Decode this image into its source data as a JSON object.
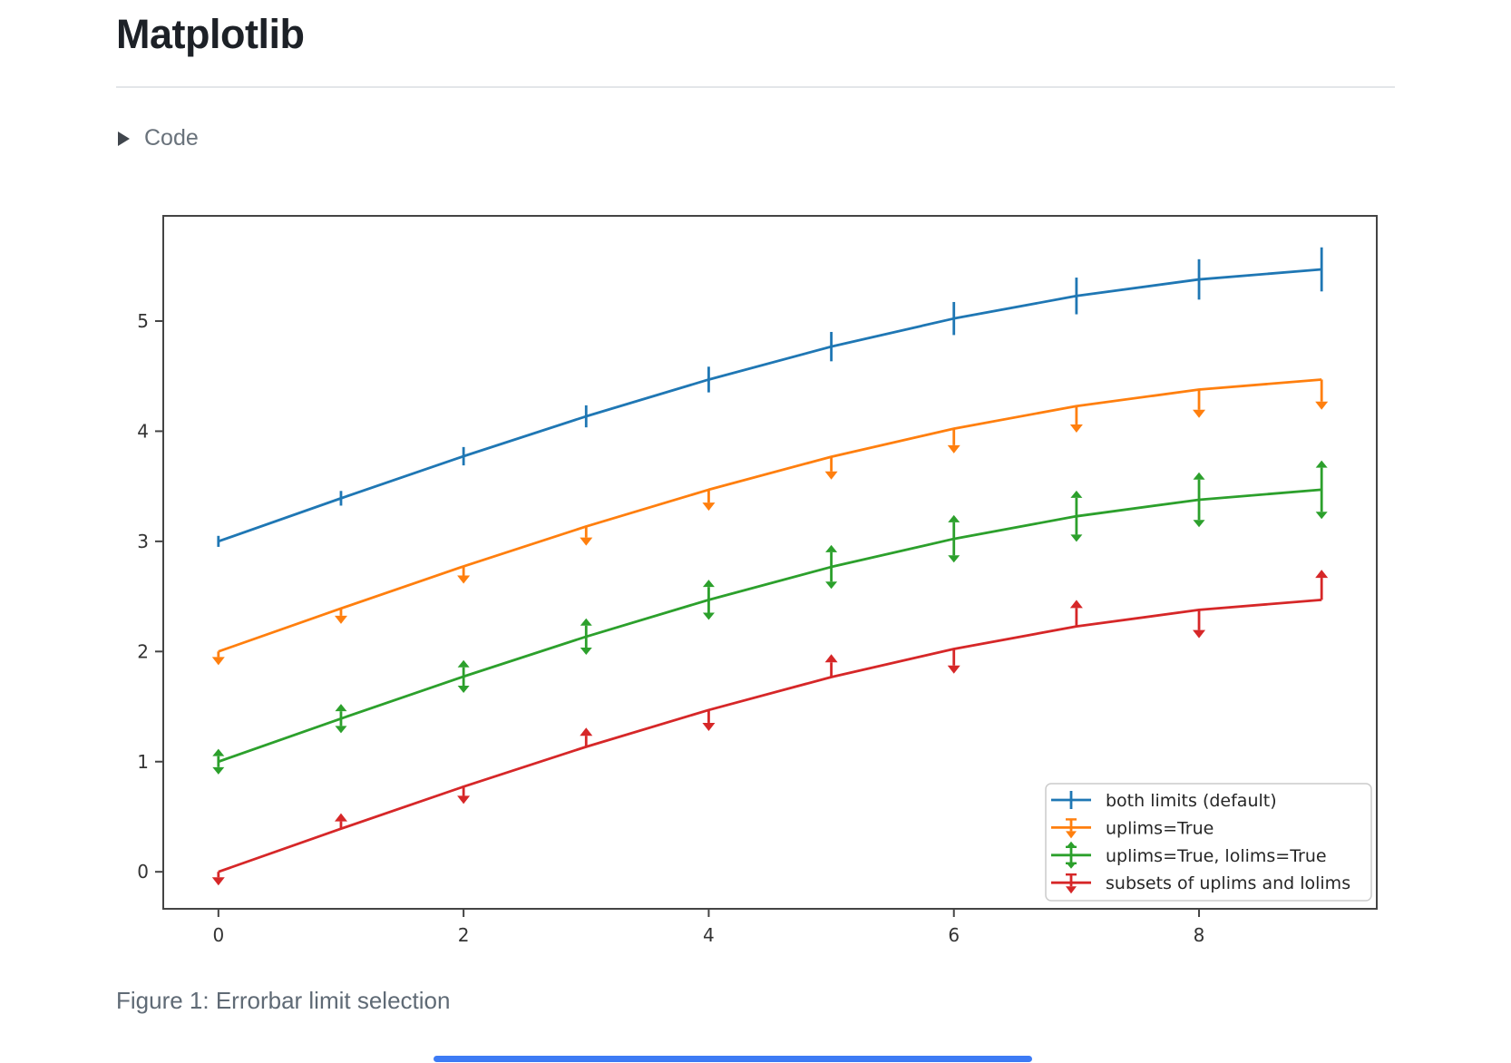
{
  "page": {
    "title": "Matplotlib",
    "code_toggle": {
      "label": "Code",
      "icon": "triangle-right-icon"
    },
    "figure_caption": "Figure 1: Errorbar limit selection"
  },
  "colors": {
    "title_text": "#1d2127",
    "muted_text": "#69727b",
    "caption_text": "#5f6a75",
    "divider": "#e3e6e9",
    "axis": "#444444",
    "tick_text": "#333333",
    "legend_border": "#cccccc",
    "legend_text": "#262626",
    "bottom_bar": "#3d7bf5"
  },
  "chart_data": {
    "type": "line",
    "subtype": "errorbar",
    "title": "",
    "xlabel": "",
    "ylabel": "",
    "x": [
      0,
      1,
      2,
      3,
      4,
      5,
      6,
      7,
      8,
      9
    ],
    "xlim": [
      -0.45,
      9.45
    ],
    "ylim": [
      -0.336,
      5.955
    ],
    "x_ticks": [
      0,
      2,
      4,
      6,
      8
    ],
    "y_ticks": [
      0,
      1,
      2,
      3,
      4,
      5
    ],
    "grid": false,
    "legend_position": "lower right",
    "yerr": [
      0.05,
      0.0667,
      0.0833,
      0.1,
      0.1167,
      0.1333,
      0.15,
      0.1667,
      0.1833,
      0.2
    ],
    "series": [
      {
        "name": "both limits (default)",
        "color": "#1f77b4",
        "limits": "none",
        "values": [
          3.0,
          3.391,
          3.773,
          4.135,
          4.469,
          4.768,
          5.023,
          5.228,
          5.378,
          5.469
        ]
      },
      {
        "name": "uplims=True",
        "color": "#ff7f0e",
        "limits": "uplims",
        "values": [
          2.0,
          2.391,
          2.773,
          3.135,
          3.469,
          3.768,
          4.023,
          4.228,
          4.378,
          4.469
        ]
      },
      {
        "name": "uplims=True, lolims=True",
        "color": "#2ca02c",
        "limits": "both",
        "values": [
          1.0,
          1.391,
          1.773,
          2.135,
          2.469,
          2.768,
          3.023,
          3.228,
          3.378,
          3.469
        ]
      },
      {
        "name": "subsets of uplims and lolims",
        "color": "#d62728",
        "limits": "alternating",
        "limit_pattern": [
          "uplims",
          "lolims",
          "uplims",
          "lolims",
          "uplims",
          "lolims",
          "uplims",
          "lolims",
          "uplims",
          "lolims"
        ],
        "values": [
          0.0,
          0.391,
          0.773,
          1.135,
          1.469,
          1.768,
          2.023,
          2.228,
          2.378,
          2.469
        ]
      }
    ]
  }
}
